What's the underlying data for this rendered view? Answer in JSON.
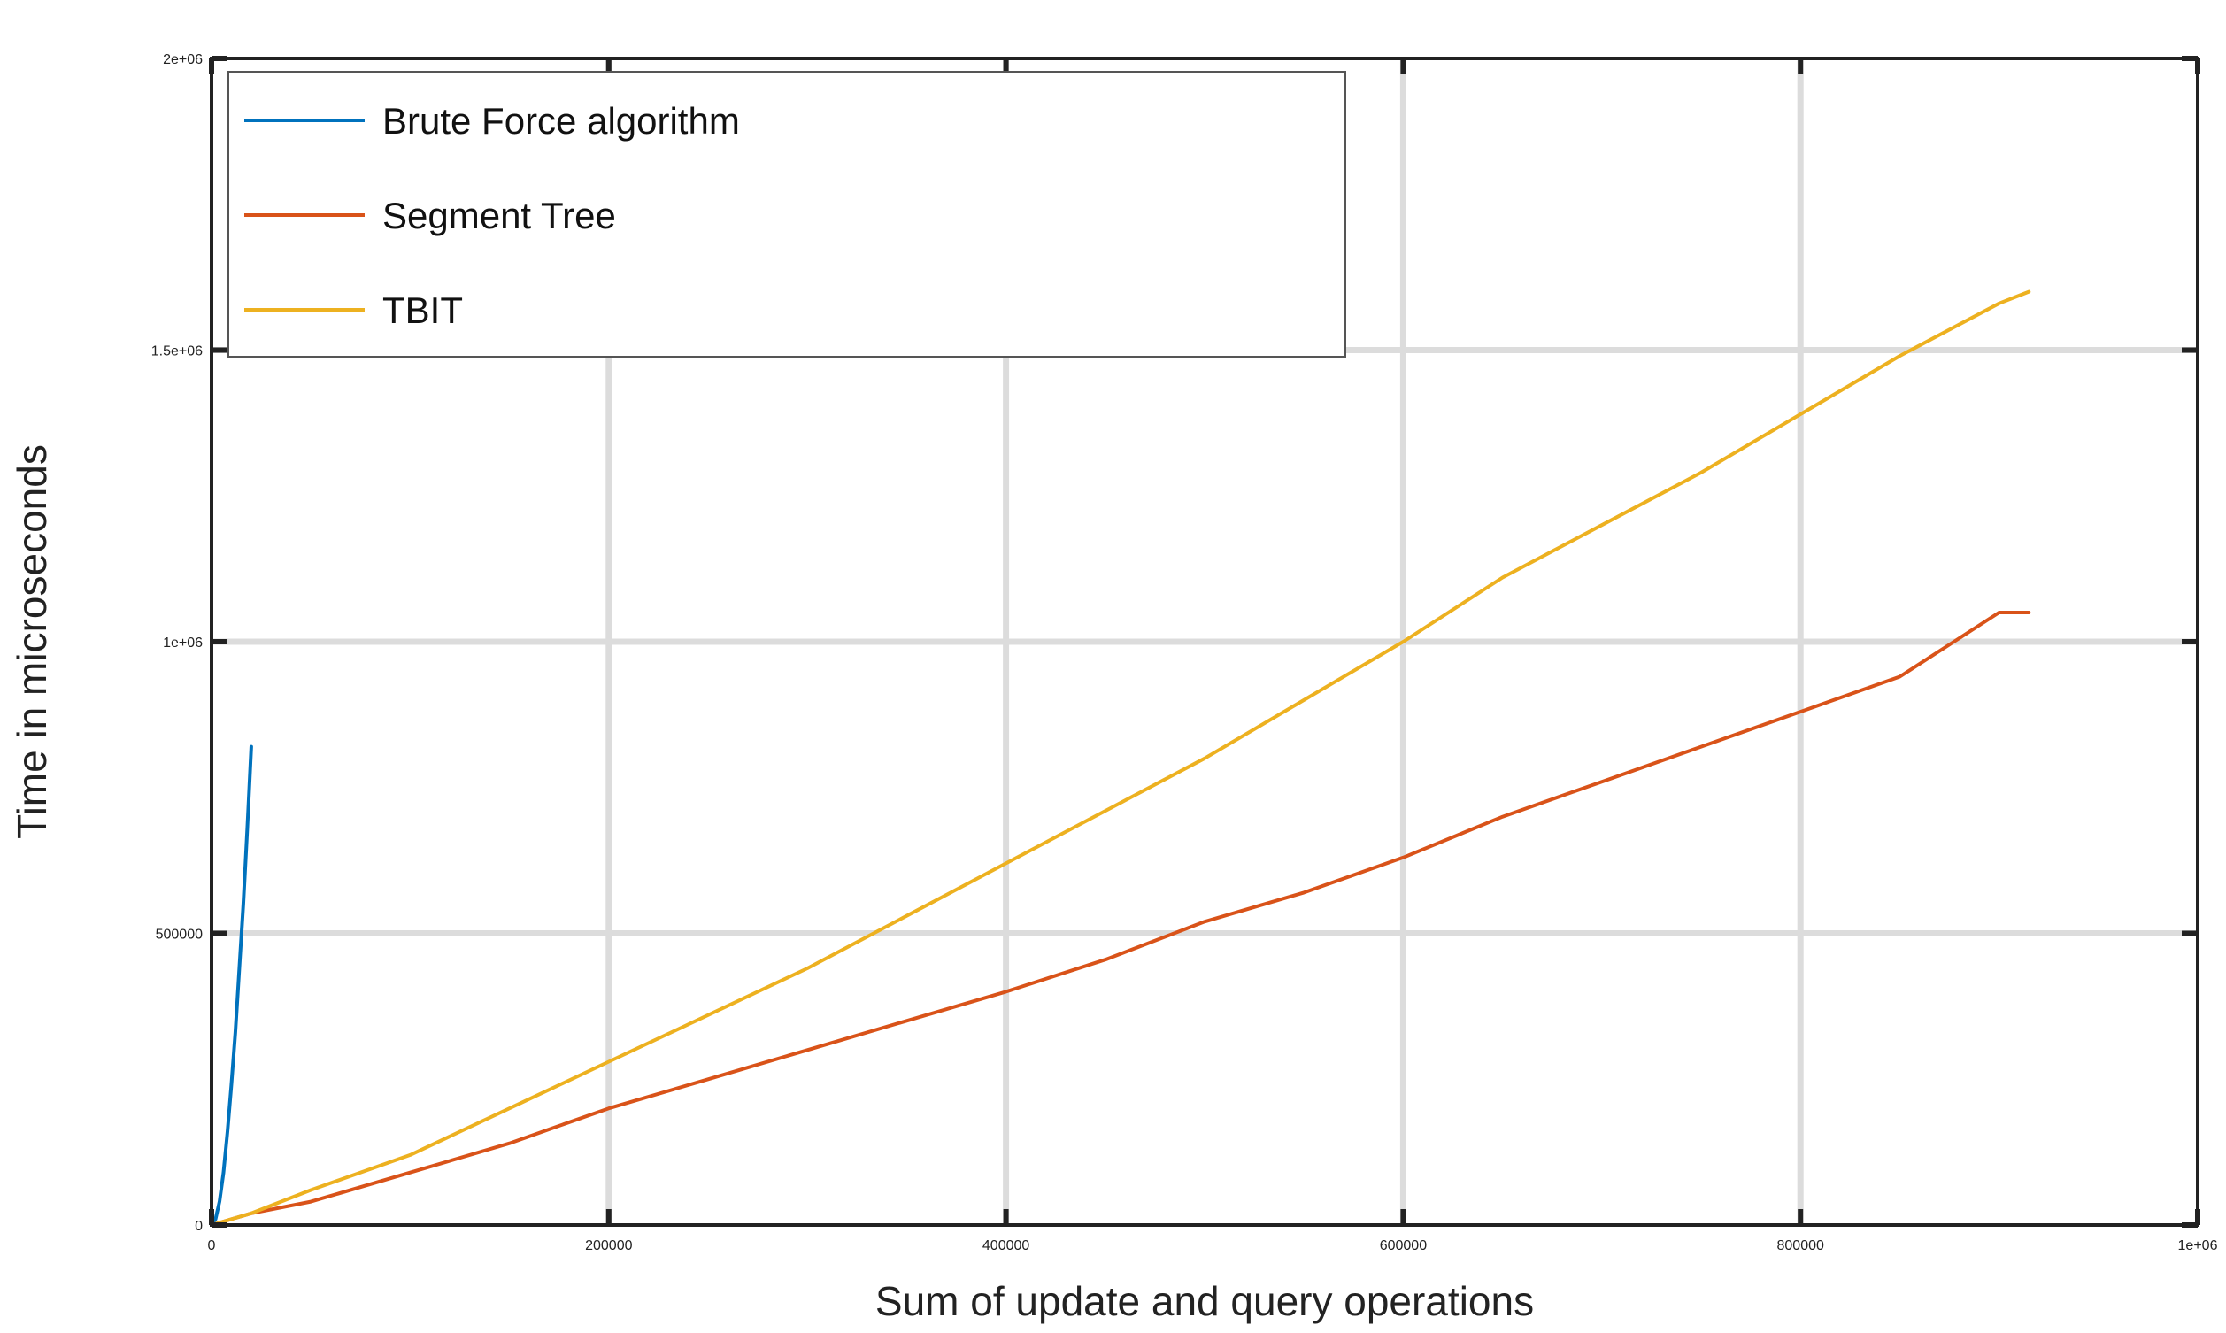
{
  "chart_data": {
    "type": "line",
    "title": "",
    "xlabel": "Sum of update and query operations",
    "ylabel": "Time in microseconds",
    "xlim": [
      0,
      1000000
    ],
    "ylim": [
      0,
      2000000
    ],
    "x_ticks": [
      0,
      200000,
      400000,
      600000,
      800000,
      1000000
    ],
    "x_tick_labels": [
      "0",
      "200000",
      "400000",
      "600000",
      "800000",
      "1e+06"
    ],
    "y_ticks": [
      0,
      500000,
      1000000,
      1500000,
      2000000
    ],
    "y_tick_labels": [
      "0",
      "500000",
      "1e+06",
      "1.5e+06",
      "2e+06"
    ],
    "grid": true,
    "legend_position": "top-left",
    "series": [
      {
        "name": "Brute Force algorithm",
        "color": "#0072bd",
        "x": [
          0,
          2000,
          4000,
          6000,
          8000,
          10000,
          12000,
          14000,
          16000,
          18000,
          20000
        ],
        "y": [
          0,
          10000,
          40000,
          90000,
          160000,
          240000,
          330000,
          440000,
          550000,
          680000,
          820000
        ]
      },
      {
        "name": "Segment Tree",
        "color": "#d95319",
        "x": [
          0,
          20000,
          50000,
          100000,
          150000,
          200000,
          250000,
          300000,
          350000,
          400000,
          450000,
          500000,
          550000,
          600000,
          650000,
          700000,
          750000,
          800000,
          850000,
          900000,
          915000
        ],
        "y": [
          0,
          20000,
          40000,
          90000,
          140000,
          200000,
          250000,
          300000,
          350000,
          400000,
          455000,
          520000,
          570000,
          630000,
          700000,
          760000,
          820000,
          880000,
          940000,
          1050000,
          1050000
        ]
      },
      {
        "name": "TBIT",
        "color": "#edb120",
        "x": [
          0,
          20000,
          50000,
          100000,
          150000,
          200000,
          250000,
          300000,
          350000,
          400000,
          450000,
          500000,
          550000,
          600000,
          650000,
          700000,
          750000,
          800000,
          850000,
          900000,
          915000
        ],
        "y": [
          0,
          20000,
          60000,
          120000,
          200000,
          280000,
          360000,
          440000,
          530000,
          620000,
          710000,
          800000,
          900000,
          1000000,
          1110000,
          1200000,
          1290000,
          1390000,
          1490000,
          1580000,
          1600000
        ]
      }
    ]
  }
}
